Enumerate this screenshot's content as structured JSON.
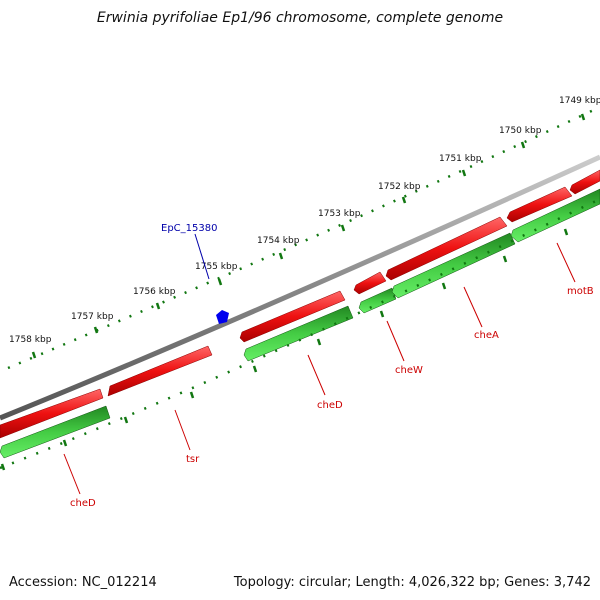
{
  "header": {
    "title": "Erwinia pyrifoliae Ep1/96 chromosome, complete genome"
  },
  "footer": {
    "accession": "Accession: NC_012214",
    "summary": "Topology: circular; Length: 4,026,322 bp; Genes: 3,742"
  },
  "map": {
    "backbone_color": "#888888",
    "forward_color": "#ee1111",
    "reverse_color": "#22aa22",
    "tick_color": "#117711",
    "ticks": [
      "1749 kbp",
      "1750 kbp",
      "1751 kbp",
      "1752 kbp",
      "1753 kbp",
      "1754 kbp",
      "1755 kbp",
      "1756 kbp",
      "1757 kbp",
      "1758 kbp"
    ],
    "genes": [
      "cheD",
      "tsr",
      "cheD",
      "cheW",
      "cheA",
      "motB"
    ],
    "feature": {
      "label": "EpC_15380",
      "color": "#0000ee",
      "icon": "pentagon-marker-icon"
    }
  }
}
